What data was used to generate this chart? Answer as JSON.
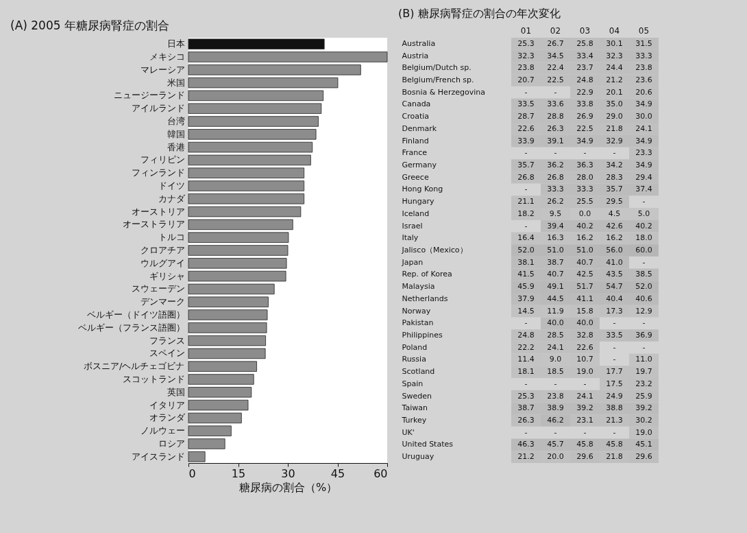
{
  "chart_data": [
    {
      "type": "bar",
      "orientation": "horizontal",
      "title": "(A) 2005 年糖尿病腎症の割合",
      "xlabel": "糖尿病の割合（%）",
      "categories": [
        "日本",
        "メキシコ",
        "マレーシア",
        "米国",
        "ニュージーランド",
        "アイルランド",
        "台湾",
        "韓国",
        "香港",
        "フィリピン",
        "フィンランド",
        "ドイツ",
        "カナダ",
        "オーストリア",
        "オーストラリア",
        "トルコ",
        "クロアチア",
        "ウルグアイ",
        "ギリシャ",
        "スウェーデン",
        "デンマーク",
        "ベルギー（ドイツ語圏）",
        "ベルギー（フランス語圏）",
        "フランス",
        "スペイン",
        "ボスニア/ヘルチェゴビナ",
        "スコットランド",
        "英国",
        "イタリア",
        "オランダ",
        "ノルウェー",
        "ロシア",
        "アイスランド"
      ],
      "values": [
        41.0,
        60.0,
        52.0,
        45.1,
        40.7,
        40.1,
        39.2,
        38.5,
        37.4,
        36.9,
        34.9,
        34.9,
        34.9,
        33.9,
        31.5,
        30.2,
        30.0,
        29.6,
        29.4,
        25.9,
        24.1,
        23.8,
        23.6,
        23.3,
        23.2,
        20.6,
        19.7,
        19.0,
        18.0,
        16.0,
        12.9,
        11.0,
        5.0
      ],
      "colors": [
        "#111111",
        "#8c8c8c",
        "#8c8c8c",
        "#8c8c8c",
        "#8c8c8c",
        "#8c8c8c",
        "#8c8c8c",
        "#8c8c8c",
        "#8c8c8c",
        "#8c8c8c",
        "#8c8c8c",
        "#8c8c8c",
        "#8c8c8c",
        "#8c8c8c",
        "#8c8c8c",
        "#8c8c8c",
        "#8c8c8c",
        "#8c8c8c",
        "#8c8c8c",
        "#8c8c8c",
        "#8c8c8c",
        "#8c8c8c",
        "#8c8c8c",
        "#8c8c8c",
        "#8c8c8c",
        "#8c8c8c",
        "#8c8c8c",
        "#8c8c8c",
        "#8c8c8c",
        "#8c8c8c",
        "#8c8c8c",
        "#8c8c8c",
        "#8c8c8c"
      ],
      "xlim": [
        0,
        60
      ],
      "xticks": [
        0,
        15,
        30,
        45,
        60
      ],
      "grid": false
    },
    {
      "type": "heatmap",
      "title": "(B) 糖尿病腎症の割合の年次変化",
      "data_labels": true,
      "categories": [
        "01",
        "02",
        "03",
        "04",
        "05"
      ],
      "y_categories": [
        "Australia",
        "Austria",
        "Belgium/Dutch sp.",
        "Belgium/French sp.",
        "Bosnia & Herzegovina",
        "Canada",
        "Croatia",
        "Denmark",
        "Finland",
        "France",
        "Germany",
        "Greece",
        "Hong Kong",
        "Hungary",
        "Iceland",
        "Israel",
        "Italy",
        "Jalisco（Mexico）",
        "Japan",
        "Rep. of Korea",
        "Malaysia",
        "Netherlands",
        "Norway",
        "Pakistan",
        "Philippines",
        "Poland",
        "Russia",
        "Scotland",
        "Spain",
        "Sweden",
        "Taiwan",
        "Turkey",
        "UK'",
        "United States",
        "Uruguay"
      ],
      "cells": [
        [
          25.3,
          26.7,
          25.8,
          30.1,
          31.5
        ],
        [
          32.3,
          34.5,
          33.4,
          32.3,
          33.3
        ],
        [
          23.8,
          22.4,
          23.7,
          24.4,
          23.8
        ],
        [
          20.7,
          22.5,
          24.8,
          21.2,
          23.6
        ],
        [
          null,
          null,
          22.9,
          20.1,
          20.6
        ],
        [
          33.5,
          33.6,
          33.8,
          35.0,
          34.9
        ],
        [
          28.7,
          28.8,
          26.9,
          29.0,
          30.0
        ],
        [
          22.6,
          26.3,
          22.5,
          21.8,
          24.1
        ],
        [
          33.9,
          39.1,
          34.9,
          32.9,
          34.9
        ],
        [
          null,
          null,
          null,
          null,
          23.3
        ],
        [
          35.7,
          36.2,
          36.3,
          34.2,
          34.9
        ],
        [
          26.8,
          26.8,
          28.0,
          28.3,
          29.4
        ],
        [
          null,
          33.3,
          33.3,
          35.7,
          37.4
        ],
        [
          21.1,
          26.2,
          25.5,
          29.5,
          null
        ],
        [
          18.2,
          9.5,
          0.0,
          4.5,
          5.0
        ],
        [
          null,
          39.4,
          40.2,
          42.6,
          40.2
        ],
        [
          16.4,
          16.3,
          16.2,
          16.2,
          18.0
        ],
        [
          52.0,
          51.0,
          51.0,
          56.0,
          60.0
        ],
        [
          38.1,
          38.7,
          40.7,
          41.0,
          null
        ],
        [
          41.5,
          40.7,
          42.5,
          43.5,
          38.5
        ],
        [
          45.9,
          49.1,
          51.7,
          54.7,
          52.0
        ],
        [
          37.9,
          44.5,
          41.1,
          40.4,
          40.6
        ],
        [
          14.5,
          11.9,
          15.8,
          17.3,
          12.9
        ],
        [
          null,
          40.0,
          40.0,
          null,
          null
        ],
        [
          24.8,
          28.5,
          32.8,
          33.5,
          36.9
        ],
        [
          22.2,
          24.1,
          22.6,
          null,
          null
        ],
        [
          11.4,
          9.0,
          10.7,
          null,
          11.0
        ],
        [
          18.1,
          18.5,
          19.0,
          17.7,
          19.7
        ],
        [
          null,
          null,
          null,
          17.5,
          23.2
        ],
        [
          25.3,
          23.8,
          24.1,
          24.9,
          25.9
        ],
        [
          38.7,
          38.9,
          39.2,
          38.8,
          39.2
        ],
        [
          26.3,
          46.2,
          23.1,
          21.3,
          30.2
        ],
        [
          null,
          null,
          null,
          null,
          19.0
        ],
        [
          46.3,
          45.7,
          45.8,
          45.8,
          45.1
        ],
        [
          21.2,
          20.0,
          29.6,
          21.8,
          29.6
        ]
      ],
      "cell_labels": [
        [
          "25.3",
          "26.7",
          "25.8",
          "30.1",
          "31.5"
        ],
        [
          "32.3",
          "34.5",
          "33.4",
          "32.3",
          "33.3"
        ],
        [
          "23.8",
          "22.4",
          "23.7",
          "24.4",
          "23.8"
        ],
        [
          "20.7",
          "22.5",
          "24.8",
          "21.2",
          "23.6"
        ],
        [
          "-",
          "-",
          "22.9",
          "20.1",
          "20.6"
        ],
        [
          "33.5",
          "33.6",
          "33.8",
          "35.0",
          "34.9"
        ],
        [
          "28.7",
          "28.8",
          "26.9",
          "29.0",
          "30.0"
        ],
        [
          "22.6",
          "26.3",
          "22.5",
          "21.8",
          "24.1"
        ],
        [
          "33.9",
          "39.1",
          "34.9",
          "32.9",
          "34.9"
        ],
        [
          "-",
          "-",
          "-",
          "-",
          "23.3"
        ],
        [
          "35.7",
          "36.2",
          "36.3",
          "34.2",
          "34.9"
        ],
        [
          "26.8",
          "26.8",
          "28.0",
          "28.3",
          "29.4"
        ],
        [
          "-",
          "33.3",
          "33.3",
          "35.7",
          "37.4"
        ],
        [
          "21.1",
          "26.2",
          "25.5",
          "29.5",
          "-"
        ],
        [
          "18.2",
          "9.5",
          "0.0",
          "4.5",
          "5.0"
        ],
        [
          "-",
          "39.4",
          "40.2",
          "42.6",
          "40.2"
        ],
        [
          "16.4",
          "16.3",
          "16.2",
          "16.2",
          "18.0"
        ],
        [
          "52.0",
          "51.0",
          "51.0",
          "56.0",
          "60.0"
        ],
        [
          "38.1",
          "38.7",
          "40.7",
          "41.0",
          "-"
        ],
        [
          "41.5",
          "40.7",
          "42.5",
          "43.5",
          "38.5"
        ],
        [
          "45.9",
          "49.1",
          "51.7",
          "54.7",
          "52.0"
        ],
        [
          "37.9",
          "44.5",
          "41.1",
          "40.4",
          "40.6"
        ],
        [
          "14.5",
          "11.9",
          "15.8",
          "17.3",
          "12.9"
        ],
        [
          "-",
          "40.0",
          "40.0",
          "-",
          "-"
        ],
        [
          "24.8",
          "28.5",
          "32.8",
          "33.5",
          "36.9"
        ],
        [
          "22.2",
          "24.1",
          "22.6",
          "-",
          "-"
        ],
        [
          "11.4",
          "9.0",
          "10.7",
          "-",
          "11.0"
        ],
        [
          "18.1",
          "18.5",
          "19.0",
          "17.7",
          "19.7"
        ],
        [
          "-",
          "-",
          "-",
          "17.5",
          "23.2"
        ],
        [
          "25.3",
          "23.8",
          "24.1",
          "24.9",
          "25.9"
        ],
        [
          "38.7",
          "38.9",
          "39.2",
          "38.8",
          "39.2"
        ],
        [
          "26.3",
          "46.2",
          "23.1",
          "21.3",
          "30.2"
        ],
        [
          "-",
          "-",
          "-",
          "-",
          "19.0"
        ],
        [
          "46.3",
          "45.7",
          "45.8",
          "45.8",
          "45.1"
        ],
        [
          "21.2",
          "20.0",
          "29.6",
          "21.8",
          "29.6"
        ]
      ]
    }
  ]
}
